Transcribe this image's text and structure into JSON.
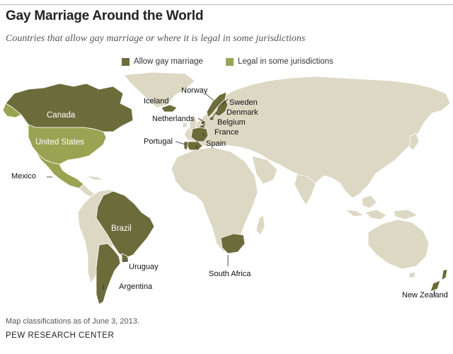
{
  "title": "Gay Marriage Around the World",
  "subtitle": "Countries that allow gay marriage or where it is legal in some jurisdictions",
  "legend": {
    "allow": {
      "label": "Allow gay marriage",
      "color": "#6b6c3a"
    },
    "partial": {
      "label": "Legal in some jurisdictions",
      "color": "#9aa352"
    }
  },
  "colors": {
    "other_land": "#ddd8c4",
    "border": "#ffffff",
    "leader": "#222222"
  },
  "countries": {
    "canada": "Canada",
    "united_states": "United States",
    "mexico": "Mexico",
    "iceland": "Iceland",
    "norway": "Norway",
    "sweden": "Sweden",
    "denmark": "Denmark",
    "netherlands": "Netherlands",
    "belgium": "Belgium",
    "france": "France",
    "portugal": "Portugal",
    "spain": "Spain",
    "brazil": "Brazil",
    "uruguay": "Uruguay",
    "argentina": "Argentina",
    "south_africa": "South Africa",
    "new_zealand": "New Zealand"
  },
  "footnote": "Map classifications as of June 3, 2013.",
  "source": "PEW RESEARCH CENTER"
}
